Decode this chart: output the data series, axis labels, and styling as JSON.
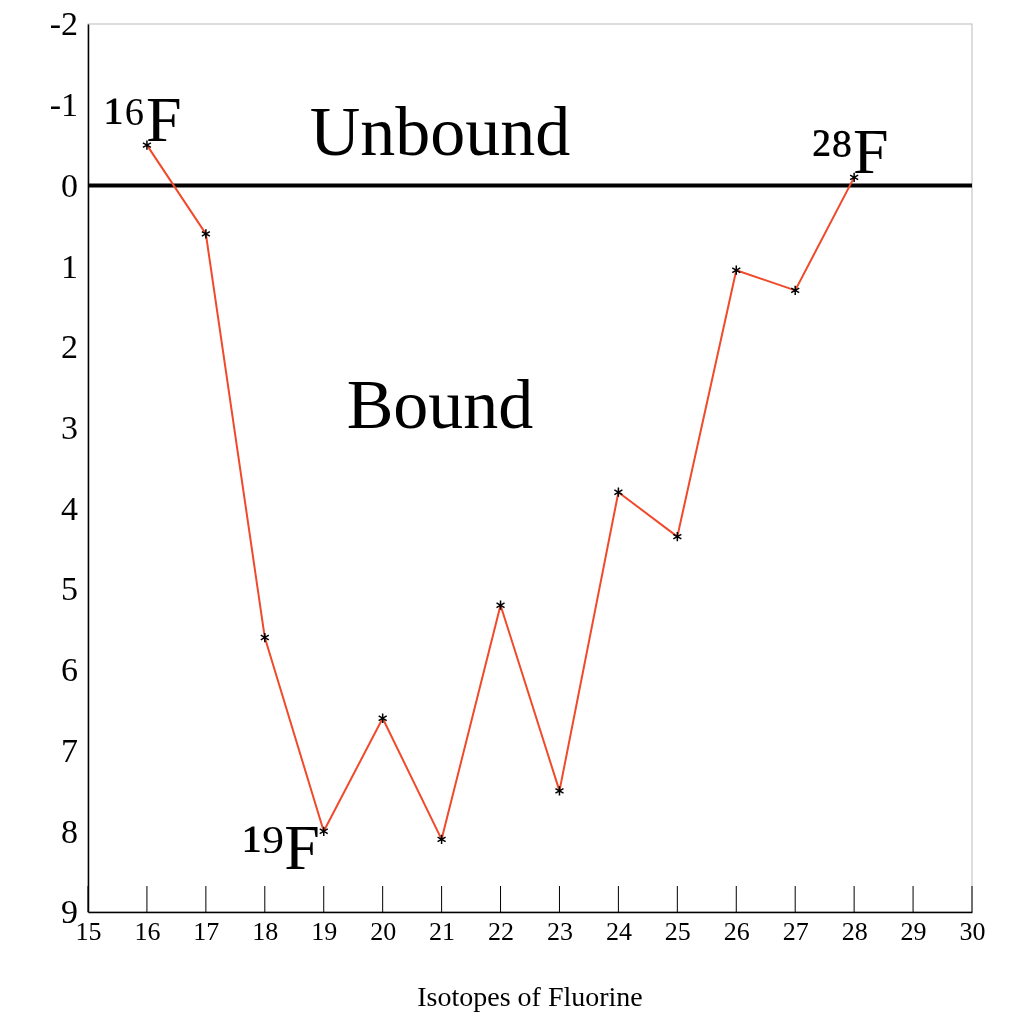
{
  "chart_data": {
    "type": "line",
    "xlabel": "Isotopes of Fluorine",
    "x": [
      16,
      17,
      18,
      19,
      20,
      21,
      22,
      23,
      24,
      25,
      26,
      27,
      28
    ],
    "series": [
      {
        "color": "#f04a2a",
        "values": [
          -0.5,
          0.6,
          5.6,
          8.0,
          6.6,
          8.1,
          5.2,
          7.5,
          3.8,
          4.35,
          1.05,
          1.3,
          -0.1
        ]
      }
    ],
    "xlim": [
      15,
      30
    ],
    "xticks": [
      15,
      16,
      17,
      18,
      19,
      20,
      21,
      22,
      23,
      24,
      25,
      26,
      27,
      28,
      29,
      30
    ],
    "ylim": [
      9,
      -2
    ],
    "yticks": [
      -2,
      -1,
      0,
      1,
      2,
      3,
      4,
      5,
      6,
      7,
      8,
      9
    ],
    "marker": "cross",
    "line_style": "solid",
    "grid": false,
    "ref_lines": [
      {
        "axis": "y",
        "value": 0,
        "color": "#000000"
      }
    ],
    "annotations": [
      "Unbound",
      "Bound",
      {
        "text": "¹⁶F",
        "x": 16,
        "y": -0.5
      },
      {
        "text": "¹⁹F",
        "x": 19,
        "y": 8.0
      },
      {
        "text": "²⁸F",
        "x": 28,
        "y": -0.1
      }
    ]
  }
}
